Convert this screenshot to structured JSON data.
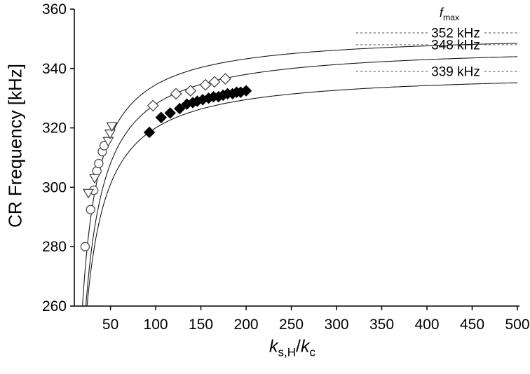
{
  "chart_data": {
    "type": "scatter",
    "title": "",
    "ylabel": "CR Frequency [kHz]",
    "xlabel_parts": {
      "num_sym": "k",
      "num_sub": "s,H",
      "divider": "/",
      "den_sym": "k",
      "den_sub": "c"
    },
    "annotation_header_parts": {
      "sym": "f",
      "sub": "max"
    },
    "xlim": [
      10,
      500
    ],
    "ylim": [
      260,
      360
    ],
    "x_ticks": [
      50,
      100,
      150,
      200,
      250,
      300,
      350,
      400,
      450,
      500
    ],
    "y_ticks": [
      260,
      280,
      300,
      320,
      340,
      360
    ],
    "grid": false,
    "legend": "none",
    "asymptotes": [
      {
        "value": 352,
        "label": "352 kHz"
      },
      {
        "value": 348,
        "label": "348 kHz"
      },
      {
        "value": 339,
        "label": "339 kHz"
      }
    ],
    "fit_curves": [
      {
        "name": "fit-curve-fmax-352",
        "model": "f(x) = fmax - A/x",
        "fmax": 352,
        "A": 1750
      },
      {
        "name": "fit-curve-fmax-348",
        "model": "f(x) = fmax - A/x",
        "fmax": 348,
        "A": 2000
      },
      {
        "name": "fit-curve-fmax-339",
        "model": "f(x) = fmax - A/x",
        "fmax": 339,
        "A": 1900
      }
    ],
    "series": [
      {
        "name": "open-circles",
        "marker": "circle-open",
        "points": [
          [
            22,
            280
          ],
          [
            28,
            292.5
          ],
          [
            31.5,
            299
          ],
          [
            35,
            305.5
          ],
          [
            37,
            308
          ],
          [
            41,
            312
          ],
          [
            43,
            314
          ]
        ]
      },
      {
        "name": "open-triangles",
        "marker": "triangle-down-open",
        "points": [
          [
            25.5,
            298
          ],
          [
            32.5,
            303
          ],
          [
            47.5,
            315.5
          ],
          [
            49.5,
            318
          ],
          [
            51.5,
            320.5
          ]
        ]
      },
      {
        "name": "open-diamonds",
        "marker": "diamond-open",
        "points": [
          [
            97,
            327.5
          ],
          [
            122.5,
            331.5
          ],
          [
            138.5,
            332.5
          ],
          [
            155,
            334.5
          ],
          [
            165,
            335.5
          ],
          [
            177,
            336.5
          ]
        ]
      },
      {
        "name": "filled-diamonds",
        "marker": "diamond-filled",
        "points": [
          [
            93,
            318.5
          ],
          [
            106,
            323.5
          ],
          [
            116,
            325
          ],
          [
            126.5,
            326.5
          ],
          [
            134.5,
            328
          ],
          [
            141,
            328.5
          ],
          [
            146,
            329
          ],
          [
            152,
            329.5
          ],
          [
            158.5,
            330
          ],
          [
            164,
            330.5
          ],
          [
            169.5,
            330.5
          ],
          [
            174.5,
            331
          ],
          [
            179.5,
            331.5
          ],
          [
            185,
            331.5
          ],
          [
            189.5,
            332
          ],
          [
            194,
            332
          ],
          [
            200,
            332.5
          ]
        ]
      }
    ],
    "colors": {
      "curve": "#1a1a1a",
      "dash": "#8f8f8f",
      "text": "#000000",
      "background": "#ffffff"
    }
  }
}
